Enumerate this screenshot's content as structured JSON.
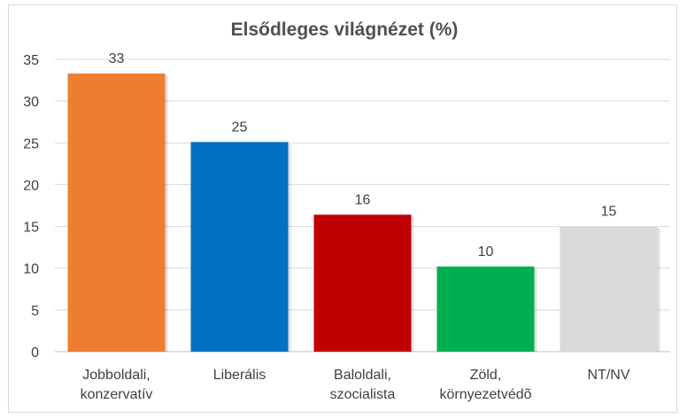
{
  "chart_data": {
    "type": "bar",
    "title": "Elsődleges világnézet (%)",
    "xlabel": "",
    "ylabel": "",
    "categories": [
      [
        "Jobboldali,",
        "konzervatív"
      ],
      [
        "Liberális"
      ],
      [
        "Baloldali,",
        "szocialista"
      ],
      [
        "Zöld,",
        "környezetvédõ"
      ],
      [
        "NT/NV"
      ]
    ],
    "values": [
      33.3,
      25.1,
      16.4,
      10.2,
      15.0
    ],
    "data_labels": [
      "33",
      "25",
      "16",
      "10",
      "15"
    ],
    "colors": [
      "#ED7D31",
      "#0070C0",
      "#C00000",
      "#00B050",
      "#D9D9D9"
    ],
    "ylim": [
      0,
      35
    ],
    "yticks": [
      0,
      5,
      10,
      15,
      20,
      25,
      30,
      35
    ],
    "grid": true,
    "legend": "none"
  }
}
